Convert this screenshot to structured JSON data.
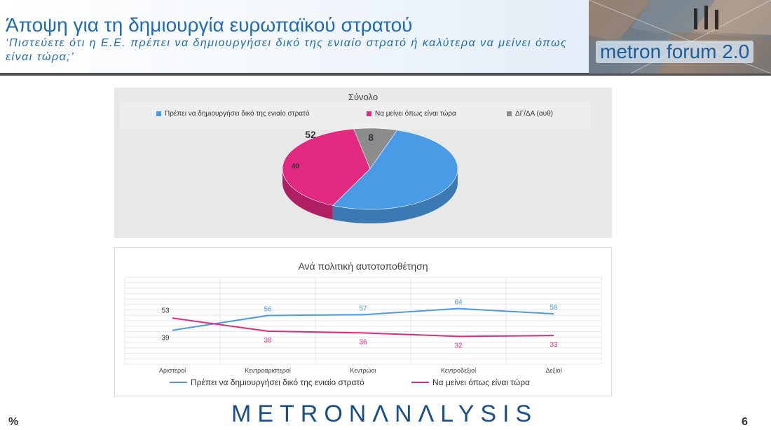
{
  "header": {
    "title": "Άποψη για τη δημιουργία ευρωπαϊκού στρατού",
    "subtitle": "‘Πιστεύετε ότι η Ε.Ε. πρέπει να δημιουργήσει δικό της ενιαίο στρατό ή καλύτερα να μείνει όπως είναι τώρα;’",
    "forum_label": "metron forum 2.0"
  },
  "colors": {
    "blue": "#4a9be6",
    "pink": "#e0297f",
    "gray": "#8c8c8c",
    "title_blue": "#1f6bb5"
  },
  "chart_data": [
    {
      "type": "pie",
      "title": "Σύνολο",
      "legend_position": "top",
      "categories": [
        "Πρέπει να δημιουργήσει δικό της ενιαίο στρατό",
        "Να μείνει όπως είναι τώρα",
        "ΔΓ/ΔΑ (αυθ)"
      ],
      "values": [
        52,
        40,
        8
      ],
      "colors": [
        "#4a9be6",
        "#e0297f",
        "#8c8c8c"
      ]
    },
    {
      "type": "line",
      "title": "Ανά πολιτική αυτοτοποθέτηση",
      "categories": [
        "Αριστεροί",
        "Κεντροαριστεροί",
        "Κεντρώοι",
        "Κεντροδεξιοί",
        "Δεξιοί"
      ],
      "legend_position": "bottom",
      "grid": true,
      "ylim": [
        0,
        100
      ],
      "series": [
        {
          "name": "Πρέπει να δημιουργήσει δικό της ενιαίο στρατό",
          "values": [
            39,
            56,
            57,
            64,
            58
          ],
          "color": "#4a9be6"
        },
        {
          "name": "Να μείνει όπως είναι τώρα",
          "values": [
            53,
            38,
            36,
            32,
            33
          ],
          "color": "#e0297f"
        }
      ]
    }
  ],
  "footer": {
    "logo_left": "METRON",
    "logo_right": "ΛNΛLYSIS",
    "percent": "%",
    "page": "6"
  }
}
